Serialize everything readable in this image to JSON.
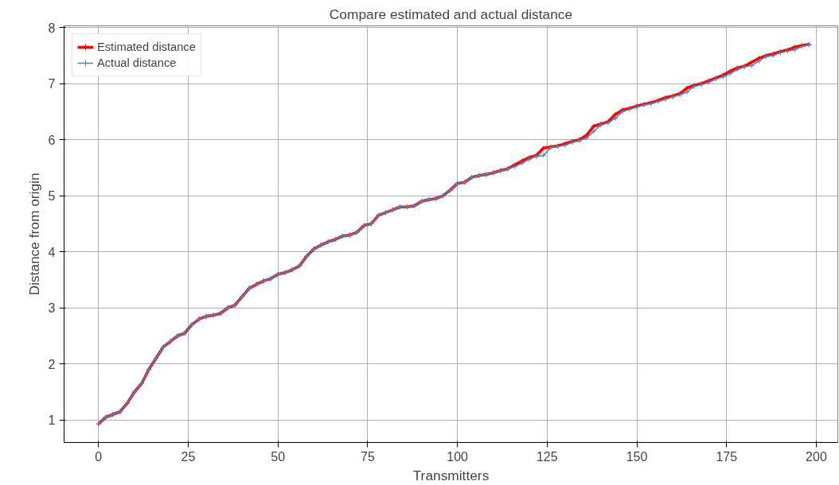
{
  "chart_data": {
    "type": "line",
    "title": "Compare estimated and actual distance",
    "xlabel": "Transmitters",
    "ylabel": "Distance from origin",
    "x": [
      0,
      2,
      4,
      6,
      8,
      10,
      12,
      14,
      16,
      18,
      20,
      22,
      24,
      26,
      28,
      30,
      32,
      34,
      36,
      38,
      40,
      42,
      44,
      46,
      48,
      50,
      52,
      54,
      56,
      58,
      60,
      62,
      64,
      66,
      68,
      70,
      72,
      74,
      76,
      78,
      80,
      82,
      84,
      86,
      88,
      90,
      92,
      94,
      96,
      98,
      100,
      102,
      104,
      106,
      108,
      110,
      112,
      114,
      116,
      118,
      120,
      122,
      124,
      126,
      128,
      130,
      132,
      134,
      136,
      138,
      140,
      142,
      144,
      146,
      148,
      150,
      152,
      154,
      156,
      158,
      160,
      162,
      164,
      166,
      168,
      170,
      172,
      174,
      176,
      178,
      180,
      182,
      184,
      186,
      188,
      190,
      192,
      194,
      196,
      198
    ],
    "series": [
      {
        "name": "Estimated distance",
        "color": "#ff0000",
        "values": [
          0.93,
          1.05,
          1.1,
          1.15,
          1.3,
          1.5,
          1.65,
          1.9,
          2.1,
          2.3,
          2.4,
          2.5,
          2.55,
          2.7,
          2.8,
          2.85,
          2.87,
          2.9,
          3.0,
          3.05,
          3.2,
          3.35,
          3.42,
          3.48,
          3.52,
          3.6,
          3.63,
          3.68,
          3.75,
          3.92,
          4.05,
          4.12,
          4.18,
          4.22,
          4.28,
          4.3,
          4.35,
          4.47,
          4.5,
          4.65,
          4.7,
          4.75,
          4.8,
          4.8,
          4.82,
          4.9,
          4.93,
          4.95,
          5.0,
          5.1,
          5.22,
          5.24,
          5.33,
          5.36,
          5.38,
          5.41,
          5.45,
          5.48,
          5.55,
          5.62,
          5.68,
          5.72,
          5.85,
          5.87,
          5.89,
          5.93,
          5.97,
          6.0,
          6.08,
          6.24,
          6.28,
          6.32,
          6.45,
          6.53,
          6.56,
          6.6,
          6.63,
          6.66,
          6.7,
          6.75,
          6.78,
          6.82,
          6.92,
          6.97,
          7.0,
          7.05,
          7.1,
          7.15,
          7.22,
          7.28,
          7.31,
          7.38,
          7.45,
          7.5,
          7.53,
          7.57,
          7.6,
          7.65,
          7.68,
          7.7
        ]
      },
      {
        "name": "Actual distance",
        "color": "#4a86c0",
        "values": [
          0.93,
          1.05,
          1.1,
          1.15,
          1.3,
          1.5,
          1.65,
          1.9,
          2.1,
          2.3,
          2.4,
          2.5,
          2.55,
          2.7,
          2.8,
          2.85,
          2.87,
          2.9,
          3.0,
          3.05,
          3.2,
          3.35,
          3.42,
          3.48,
          3.52,
          3.6,
          3.63,
          3.68,
          3.75,
          3.92,
          4.05,
          4.12,
          4.18,
          4.22,
          4.28,
          4.3,
          4.35,
          4.47,
          4.5,
          4.65,
          4.7,
          4.75,
          4.8,
          4.8,
          4.82,
          4.9,
          4.93,
          4.95,
          5.0,
          5.1,
          5.22,
          5.24,
          5.33,
          5.36,
          5.38,
          5.41,
          5.45,
          5.48,
          5.52,
          5.58,
          5.65,
          5.7,
          5.72,
          5.86,
          5.88,
          5.9,
          5.95,
          5.98,
          6.03,
          6.15,
          6.26,
          6.3,
          6.38,
          6.5,
          6.54,
          6.58,
          6.62,
          6.64,
          6.68,
          6.72,
          6.76,
          6.8,
          6.85,
          6.95,
          6.98,
          7.02,
          7.08,
          7.12,
          7.18,
          7.25,
          7.3,
          7.32,
          7.4,
          7.48,
          7.5,
          7.55,
          7.58,
          7.6,
          7.66,
          7.69
        ]
      }
    ],
    "xlim": [
      -9.6,
      206
    ],
    "xticks": [
      0,
      25,
      50,
      75,
      100,
      125,
      150,
      175,
      200
    ],
    "ylim": [
      0.6,
      8.03
    ],
    "yticks": [
      1,
      2,
      3,
      4,
      5,
      6,
      7,
      8
    ],
    "grid": true,
    "legend": "top left",
    "marker": "cross",
    "line_style": "solid"
  }
}
